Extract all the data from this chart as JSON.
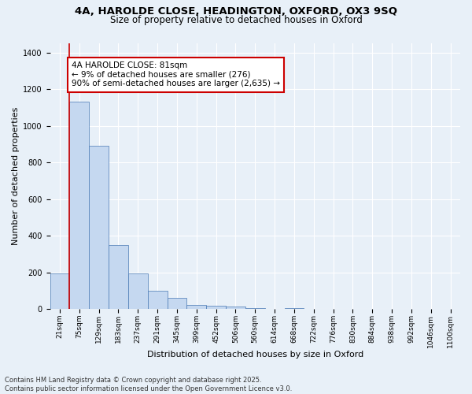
{
  "title_line1": "4A, HAROLDE CLOSE, HEADINGTON, OXFORD, OX3 9SQ",
  "title_line2": "Size of property relative to detached houses in Oxford",
  "xlabel": "Distribution of detached houses by size in Oxford",
  "ylabel": "Number of detached properties",
  "footnote": "Contains HM Land Registry data © Crown copyright and database right 2025.\nContains public sector information licensed under the Open Government Licence v3.0.",
  "bin_labels": [
    "21sqm",
    "75sqm",
    "129sqm",
    "183sqm",
    "237sqm",
    "291sqm",
    "345sqm",
    "399sqm",
    "452sqm",
    "506sqm",
    "560sqm",
    "614sqm",
    "668sqm",
    "722sqm",
    "776sqm",
    "830sqm",
    "884sqm",
    "938sqm",
    "992sqm",
    "1046sqm",
    "1100sqm"
  ],
  "bar_values": [
    195,
    1130,
    890,
    350,
    195,
    100,
    60,
    25,
    20,
    13,
    5,
    0,
    8,
    0,
    0,
    0,
    0,
    0,
    0,
    0,
    0
  ],
  "bar_color": "#c5d8f0",
  "bar_edge_color": "#4a7ab5",
  "annotation_title": "4A HAROLDE CLOSE: 81sqm",
  "annotation_line2": "← 9% of detached houses are smaller (276)",
  "annotation_line3": "90% of semi-detached houses are larger (2,635) →",
  "annotation_box_color": "#ffffff",
  "annotation_box_edge_color": "#cc0000",
  "vline_color": "#cc0000",
  "ylim": [
    0,
    1450
  ],
  "bg_color": "#e8f0f8",
  "plot_bg_color": "#e8f0f8",
  "grid_color": "#ffffff",
  "title1_fontsize": 9.5,
  "title2_fontsize": 8.5,
  "axis_label_fontsize": 8,
  "tick_fontsize": 6.5,
  "annotation_fontsize": 7.5,
  "footnote_fontsize": 6
}
